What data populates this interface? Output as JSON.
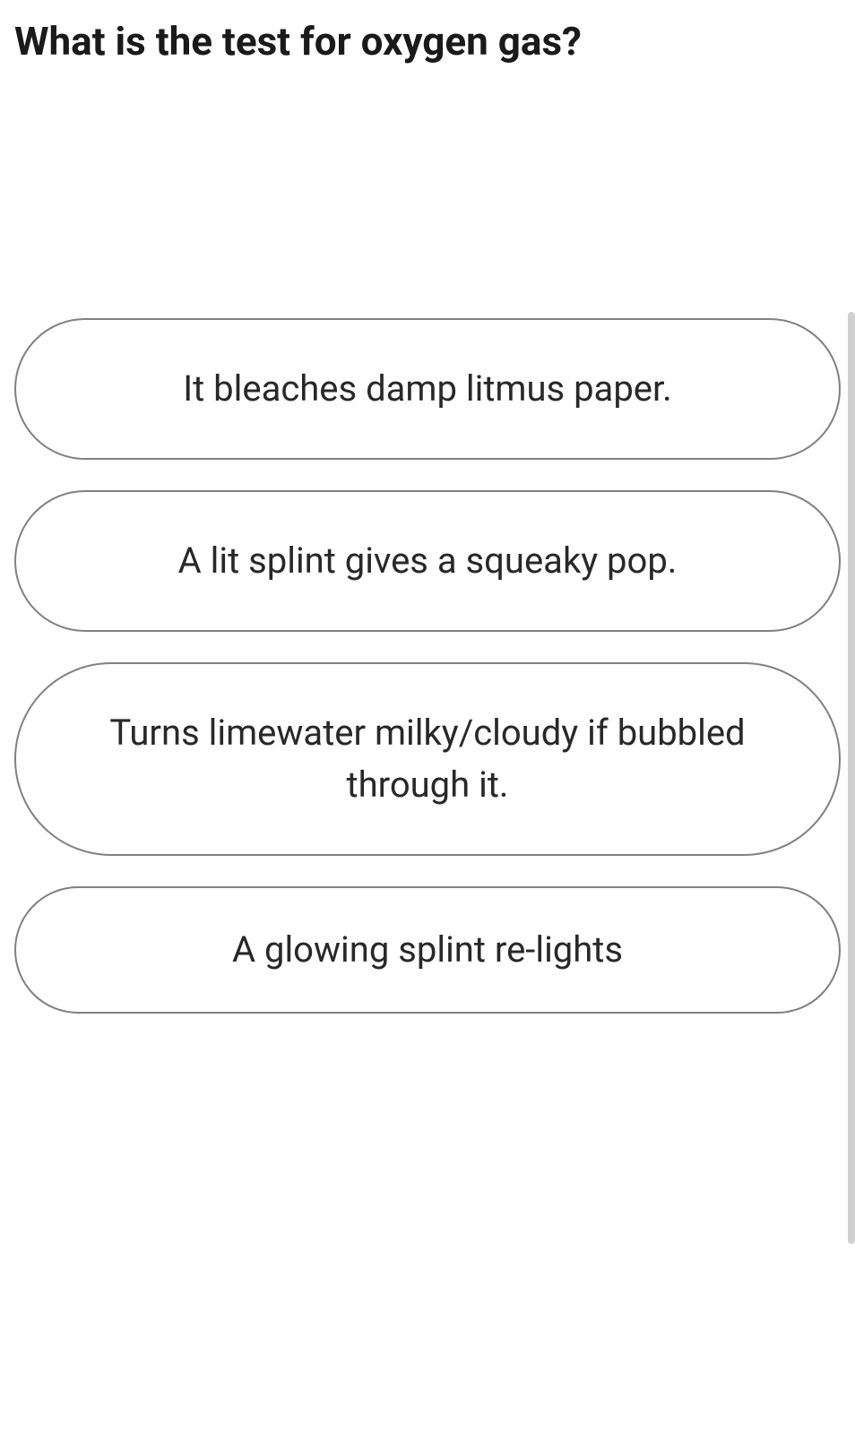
{
  "question": {
    "text": "What is the test for oxygen gas?",
    "fontsize": 44,
    "fontweight": 700,
    "color": "#1a1a1a"
  },
  "options": [
    {
      "text": "It bleaches damp litmus paper."
    },
    {
      "text": "A lit splint gives a squeaky pop."
    },
    {
      "text": "Turns limewater milky/cloudy if bubbled through it."
    },
    {
      "text": "A glowing splint re-lights"
    }
  ],
  "styling": {
    "option_border_color": "#808080",
    "option_border_width": 2,
    "option_border_radius": 120,
    "option_text_color": "#282828",
    "option_fontsize": 40,
    "background_color": "#ffffff",
    "scrollbar_color": "#d0d0d0"
  }
}
